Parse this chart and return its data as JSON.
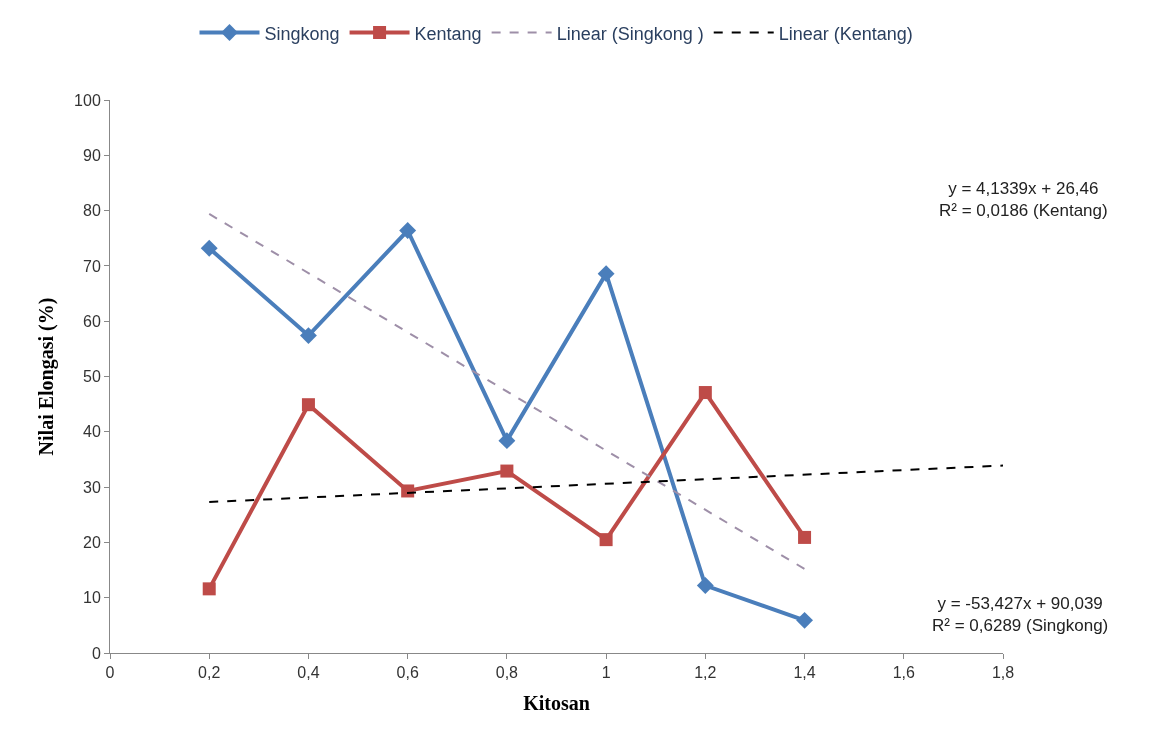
{
  "chart_data": {
    "type": "line",
    "xlabel": "Kitosan",
    "ylabel": "Nilai Elongasi (%)",
    "x": [
      0.2,
      0.4,
      0.6,
      0.8,
      1.0,
      1.2,
      1.4
    ],
    "series": [
      {
        "name": "Singkong",
        "color": "#4a7ebb",
        "marker": "diamond",
        "line_style": "solid",
        "values": [
          73.2,
          57.4,
          76.4,
          38.4,
          68.6,
          12.2,
          5.9
        ]
      },
      {
        "name": "Kentang",
        "color": "#be4b48",
        "marker": "square",
        "line_style": "solid",
        "values": [
          11.6,
          44.9,
          29.3,
          32.9,
          20.5,
          47.1,
          20.9
        ]
      },
      {
        "name": "Linear (Singkong )",
        "color": "#9e8fa8",
        "marker": "none",
        "line_style": "dashed",
        "x": [
          0.2,
          1.4
        ],
        "values": [
          79.4,
          15.2
        ]
      },
      {
        "name": "Linear (Kentang)",
        "color": "#000000",
        "marker": "none",
        "line_style": "dashed",
        "x": [
          0.2,
          1.8
        ],
        "values": [
          27.3,
          33.9
        ]
      }
    ],
    "xlim": [
      0,
      1.8
    ],
    "xticks": [
      {
        "value": 0,
        "label": "0"
      },
      {
        "value": 0.2,
        "label": "0,2"
      },
      {
        "value": 0.4,
        "label": "0,4"
      },
      {
        "value": 0.6,
        "label": "0,6"
      },
      {
        "value": 0.8,
        "label": "0,8"
      },
      {
        "value": 1,
        "label": "1"
      },
      {
        "value": 1.2,
        "label": "1,2"
      },
      {
        "value": 1.4,
        "label": "1,4"
      },
      {
        "value": 1.6,
        "label": "1,6"
      },
      {
        "value": 1.8,
        "label": "1,8"
      }
    ],
    "ylim": [
      0,
      100
    ],
    "yticks": [
      0,
      10,
      20,
      30,
      40,
      50,
      60,
      70,
      80,
      90,
      100
    ],
    "annotations": [
      "y = 4,1339x + 26,46\nR² = 0,0186 (Kentang)",
      "y = -53,427x + 90,039\nR² = 0,6289 (Singkong)"
    ],
    "legend": "top"
  }
}
